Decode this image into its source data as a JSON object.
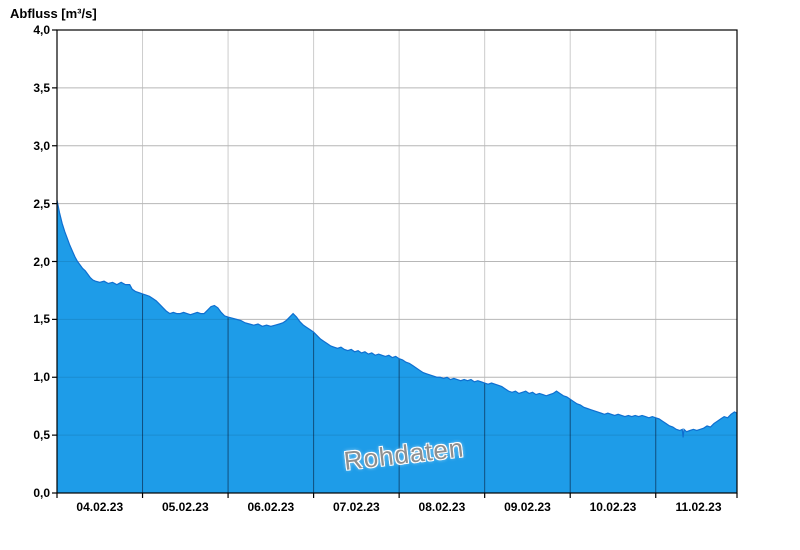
{
  "chart_data": {
    "type": "area",
    "title": "Abfluss [m³/s]",
    "watermark": "Rohdaten",
    "xlabel": "",
    "ylabel": "Abfluss [m³/s]",
    "ylim": [
      0,
      4
    ],
    "xlim_days": [
      0,
      7.95
    ],
    "x_unit": "days from 04.02.23 00:00",
    "grid": true,
    "x_tick_labels": [
      "04.02.23",
      "05.02.23",
      "06.02.23",
      "07.02.23",
      "08.02.23",
      "09.02.23",
      "10.02.23",
      "11.02.23"
    ],
    "y_ticks": [
      0,
      0.5,
      1,
      1.5,
      2,
      2.5,
      3,
      3.5,
      4
    ],
    "y_tick_labels": [
      "0,0",
      "0,5",
      "1,0",
      "1,5",
      "2,0",
      "2,5",
      "3,0",
      "3,5",
      "4,0"
    ],
    "colors": {
      "fill": "#1e9ce8",
      "line": "#0f6fd0",
      "axis": "#000000",
      "grid_light": "#cccccc",
      "grid_dark": "rgba(0,0,20,0.5)",
      "watermark": "#8f8f8f",
      "background": "#ffffff"
    },
    "series": [
      {
        "name": "Abfluss Rohdaten",
        "points": [
          [
            0.0,
            2.53
          ],
          [
            0.03,
            2.42
          ],
          [
            0.06,
            2.33
          ],
          [
            0.09,
            2.26
          ],
          [
            0.12,
            2.2
          ],
          [
            0.15,
            2.14
          ],
          [
            0.18,
            2.09
          ],
          [
            0.21,
            2.04
          ],
          [
            0.24,
            2.0
          ],
          [
            0.27,
            1.97
          ],
          [
            0.3,
            1.94
          ],
          [
            0.33,
            1.92
          ],
          [
            0.36,
            1.89
          ],
          [
            0.39,
            1.86
          ],
          [
            0.42,
            1.84
          ],
          [
            0.45,
            1.83
          ],
          [
            0.5,
            1.82
          ],
          [
            0.55,
            1.83
          ],
          [
            0.6,
            1.81
          ],
          [
            0.65,
            1.82
          ],
          [
            0.7,
            1.8
          ],
          [
            0.75,
            1.82
          ],
          [
            0.8,
            1.8
          ],
          [
            0.85,
            1.8
          ],
          [
            0.88,
            1.76
          ],
          [
            0.92,
            1.74
          ],
          [
            0.96,
            1.73
          ],
          [
            1.0,
            1.72
          ],
          [
            1.04,
            1.71
          ],
          [
            1.08,
            1.7
          ],
          [
            1.12,
            1.68
          ],
          [
            1.16,
            1.66
          ],
          [
            1.2,
            1.63
          ],
          [
            1.24,
            1.6
          ],
          [
            1.28,
            1.57
          ],
          [
            1.32,
            1.55
          ],
          [
            1.36,
            1.56
          ],
          [
            1.4,
            1.55
          ],
          [
            1.44,
            1.55
          ],
          [
            1.48,
            1.56
          ],
          [
            1.52,
            1.55
          ],
          [
            1.56,
            1.54
          ],
          [
            1.6,
            1.55
          ],
          [
            1.64,
            1.56
          ],
          [
            1.68,
            1.55
          ],
          [
            1.72,
            1.55
          ],
          [
            1.76,
            1.58
          ],
          [
            1.8,
            1.61
          ],
          [
            1.84,
            1.62
          ],
          [
            1.88,
            1.6
          ],
          [
            1.92,
            1.56
          ],
          [
            1.96,
            1.53
          ],
          [
            2.0,
            1.52
          ],
          [
            2.05,
            1.51
          ],
          [
            2.1,
            1.5
          ],
          [
            2.15,
            1.49
          ],
          [
            2.2,
            1.47
          ],
          [
            2.25,
            1.46
          ],
          [
            2.3,
            1.45
          ],
          [
            2.35,
            1.46
          ],
          [
            2.4,
            1.44
          ],
          [
            2.45,
            1.45
          ],
          [
            2.5,
            1.44
          ],
          [
            2.55,
            1.45
          ],
          [
            2.6,
            1.46
          ],
          [
            2.64,
            1.47
          ],
          [
            2.68,
            1.49
          ],
          [
            2.72,
            1.52
          ],
          [
            2.76,
            1.55
          ],
          [
            2.8,
            1.52
          ],
          [
            2.84,
            1.48
          ],
          [
            2.88,
            1.45
          ],
          [
            2.92,
            1.43
          ],
          [
            2.96,
            1.41
          ],
          [
            3.0,
            1.39
          ],
          [
            3.04,
            1.36
          ],
          [
            3.08,
            1.33
          ],
          [
            3.12,
            1.31
          ],
          [
            3.16,
            1.29
          ],
          [
            3.2,
            1.27
          ],
          [
            3.24,
            1.26
          ],
          [
            3.28,
            1.25
          ],
          [
            3.32,
            1.26
          ],
          [
            3.36,
            1.24
          ],
          [
            3.4,
            1.23
          ],
          [
            3.44,
            1.24
          ],
          [
            3.48,
            1.22
          ],
          [
            3.52,
            1.23
          ],
          [
            3.56,
            1.21
          ],
          [
            3.6,
            1.22
          ],
          [
            3.64,
            1.2
          ],
          [
            3.68,
            1.21
          ],
          [
            3.72,
            1.19
          ],
          [
            3.76,
            1.2
          ],
          [
            3.8,
            1.19
          ],
          [
            3.84,
            1.18
          ],
          [
            3.88,
            1.19
          ],
          [
            3.92,
            1.17
          ],
          [
            3.96,
            1.18
          ],
          [
            4.0,
            1.16
          ],
          [
            4.04,
            1.15
          ],
          [
            4.08,
            1.13
          ],
          [
            4.12,
            1.12
          ],
          [
            4.16,
            1.1
          ],
          [
            4.2,
            1.08
          ],
          [
            4.24,
            1.06
          ],
          [
            4.28,
            1.04
          ],
          [
            4.32,
            1.03
          ],
          [
            4.36,
            1.02
          ],
          [
            4.4,
            1.01
          ],
          [
            4.44,
            1.0
          ],
          [
            4.48,
            1.0
          ],
          [
            4.52,
            0.99
          ],
          [
            4.56,
            1.0
          ],
          [
            4.6,
            0.98
          ],
          [
            4.64,
            0.99
          ],
          [
            4.68,
            0.98
          ],
          [
            4.72,
            0.97
          ],
          [
            4.76,
            0.98
          ],
          [
            4.8,
            0.97
          ],
          [
            4.84,
            0.98
          ],
          [
            4.88,
            0.96
          ],
          [
            4.92,
            0.97
          ],
          [
            4.96,
            0.96
          ],
          [
            5.0,
            0.95
          ],
          [
            5.04,
            0.94
          ],
          [
            5.08,
            0.95
          ],
          [
            5.12,
            0.94
          ],
          [
            5.16,
            0.93
          ],
          [
            5.2,
            0.92
          ],
          [
            5.24,
            0.9
          ],
          [
            5.28,
            0.88
          ],
          [
            5.32,
            0.87
          ],
          [
            5.36,
            0.88
          ],
          [
            5.4,
            0.86
          ],
          [
            5.44,
            0.87
          ],
          [
            5.48,
            0.88
          ],
          [
            5.52,
            0.86
          ],
          [
            5.56,
            0.87
          ],
          [
            5.6,
            0.85
          ],
          [
            5.64,
            0.86
          ],
          [
            5.68,
            0.85
          ],
          [
            5.72,
            0.84
          ],
          [
            5.76,
            0.85
          ],
          [
            5.8,
            0.86
          ],
          [
            5.84,
            0.88
          ],
          [
            5.88,
            0.86
          ],
          [
            5.92,
            0.84
          ],
          [
            5.96,
            0.83
          ],
          [
            6.0,
            0.81
          ],
          [
            6.04,
            0.79
          ],
          [
            6.08,
            0.77
          ],
          [
            6.12,
            0.76
          ],
          [
            6.16,
            0.74
          ],
          [
            6.2,
            0.73
          ],
          [
            6.24,
            0.72
          ],
          [
            6.28,
            0.71
          ],
          [
            6.32,
            0.7
          ],
          [
            6.36,
            0.69
          ],
          [
            6.4,
            0.68
          ],
          [
            6.44,
            0.69
          ],
          [
            6.48,
            0.68
          ],
          [
            6.52,
            0.67
          ],
          [
            6.56,
            0.68
          ],
          [
            6.6,
            0.67
          ],
          [
            6.64,
            0.66
          ],
          [
            6.68,
            0.67
          ],
          [
            6.72,
            0.66
          ],
          [
            6.76,
            0.67
          ],
          [
            6.8,
            0.66
          ],
          [
            6.84,
            0.67
          ],
          [
            6.88,
            0.66
          ],
          [
            6.92,
            0.65
          ],
          [
            6.96,
            0.66
          ],
          [
            7.0,
            0.65
          ],
          [
            7.04,
            0.64
          ],
          [
            7.08,
            0.62
          ],
          [
            7.12,
            0.6
          ],
          [
            7.16,
            0.58
          ],
          [
            7.2,
            0.57
          ],
          [
            7.24,
            0.55
          ],
          [
            7.28,
            0.54
          ],
          [
            7.31,
            0.55
          ],
          [
            7.32,
            0.48
          ],
          [
            7.33,
            0.55
          ],
          [
            7.36,
            0.53
          ],
          [
            7.4,
            0.54
          ],
          [
            7.44,
            0.55
          ],
          [
            7.48,
            0.54
          ],
          [
            7.52,
            0.55
          ],
          [
            7.56,
            0.56
          ],
          [
            7.6,
            0.58
          ],
          [
            7.64,
            0.57
          ],
          [
            7.68,
            0.6
          ],
          [
            7.72,
            0.62
          ],
          [
            7.76,
            0.64
          ],
          [
            7.8,
            0.66
          ],
          [
            7.84,
            0.65
          ],
          [
            7.88,
            0.68
          ],
          [
            7.92,
            0.7
          ],
          [
            7.95,
            0.69
          ]
        ]
      }
    ]
  }
}
